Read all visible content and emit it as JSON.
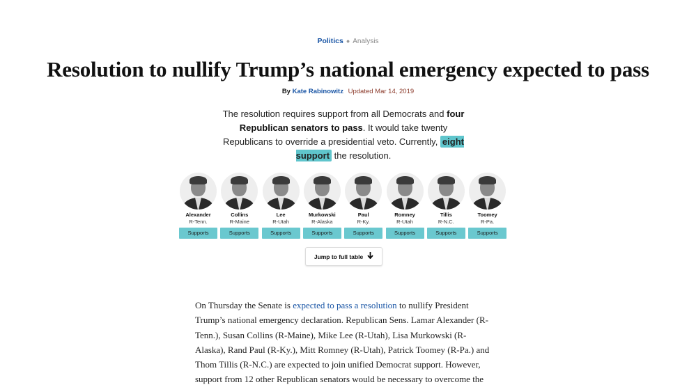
{
  "kicker": {
    "section": "Politics",
    "label": "Analysis"
  },
  "headline": "Resolution to nullify Trump’s national emergency expected to pass",
  "byline": {
    "by": "By",
    "author": "Kate Rabinowitz",
    "updated": "Updated Mar 14, 2019"
  },
  "intro": {
    "part1": "The resolution requires support from all Democrats and ",
    "bold1": "four Republican senators to pass",
    "part2": ". It would take twenty Republicans to override a presidential veto. Currently, ",
    "highlight": "eight support",
    "part3": " the resolution."
  },
  "senators": [
    {
      "name": "Alexander",
      "party": "R-Tenn.",
      "status": "Supports"
    },
    {
      "name": "Collins",
      "party": "R-Maine",
      "status": "Supports"
    },
    {
      "name": "Lee",
      "party": "R-Utah",
      "status": "Supports"
    },
    {
      "name": "Murkowski",
      "party": "R-Alaska",
      "status": "Supports"
    },
    {
      "name": "Paul",
      "party": "R-Ky.",
      "status": "Supports"
    },
    {
      "name": "Romney",
      "party": "R-Utah",
      "status": "Supports"
    },
    {
      "name": "Tillis",
      "party": "R-N.C.",
      "status": "Supports"
    },
    {
      "name": "Toomey",
      "party": "R-Pa.",
      "status": "Supports"
    }
  ],
  "jump": {
    "label": "Jump to full table",
    "icon": "arrow-down-icon"
  },
  "article": {
    "pre_link": "On Thursday the Senate is ",
    "link": "expected to pass a resolution",
    "post_link": " to nullify President Trump’s national emergency declaration. Republican Sens. Lamar Alexander (R-Tenn.), Susan Collins (R-Maine), Mike Lee (R-Utah), Lisa Murkowski (R-Alaska), Rand Paul (R-Ky.), Mitt Romney (R-Utah), Patrick Toomey (R-Pa.) and Thom Tillis (R-N.C.) are expected to join unified Democrat support. However, support from 12 other Republican senators would be necessary to overcome the"
  },
  "colors": {
    "accent_link": "#1955a5",
    "support_badge": "#6ac8cf",
    "highlight": "#5fc5cc",
    "updated": "#8b3a2b"
  }
}
